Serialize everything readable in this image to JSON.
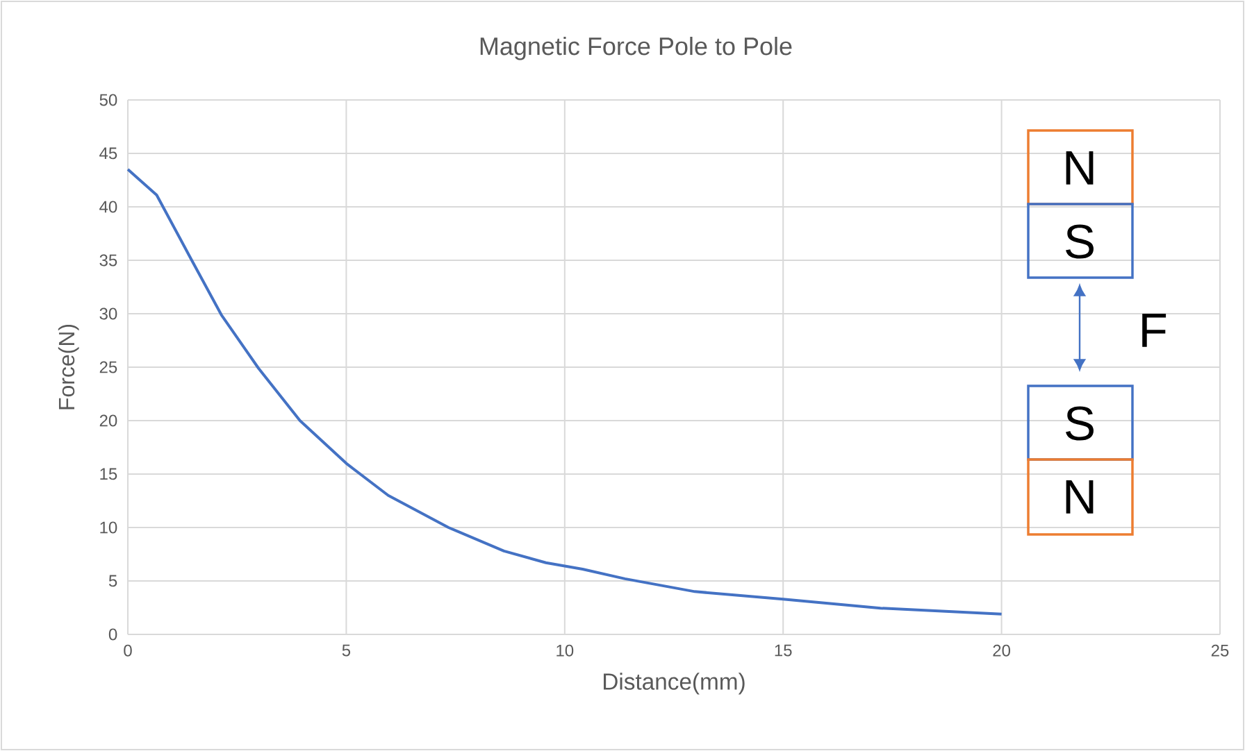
{
  "chart_data": {
    "type": "line",
    "title": "Magnetic Force Pole to Pole",
    "xlabel": "Distance(mm)",
    "ylabel": "Force(N)",
    "series": [
      {
        "color": "#4472c4",
        "x": [
          0,
          0.66,
          1.45,
          2.14,
          2.99,
          3.94,
          5,
          5.96,
          7.34,
          8.61,
          9.57,
          10.41,
          11.38,
          12.98,
          15,
          17.23,
          20
        ],
        "values": [
          43.5,
          41.1,
          35.1,
          29.9,
          24.9,
          20.0,
          16.0,
          13.0,
          10.0,
          7.8,
          6.7,
          6.1,
          5.2,
          4.0,
          3.3,
          2.45,
          1.9
        ]
      }
    ],
    "xlim": [
      0,
      25
    ],
    "ylim": [
      0,
      50
    ],
    "xticks": [
      0,
      5,
      10,
      15,
      20,
      25
    ],
    "yticks": [
      0,
      5,
      10,
      15,
      20,
      25,
      30,
      35,
      40,
      45,
      50
    ],
    "grid": true,
    "annotations": [
      "N",
      "S",
      "F",
      "S",
      "N"
    ]
  }
}
